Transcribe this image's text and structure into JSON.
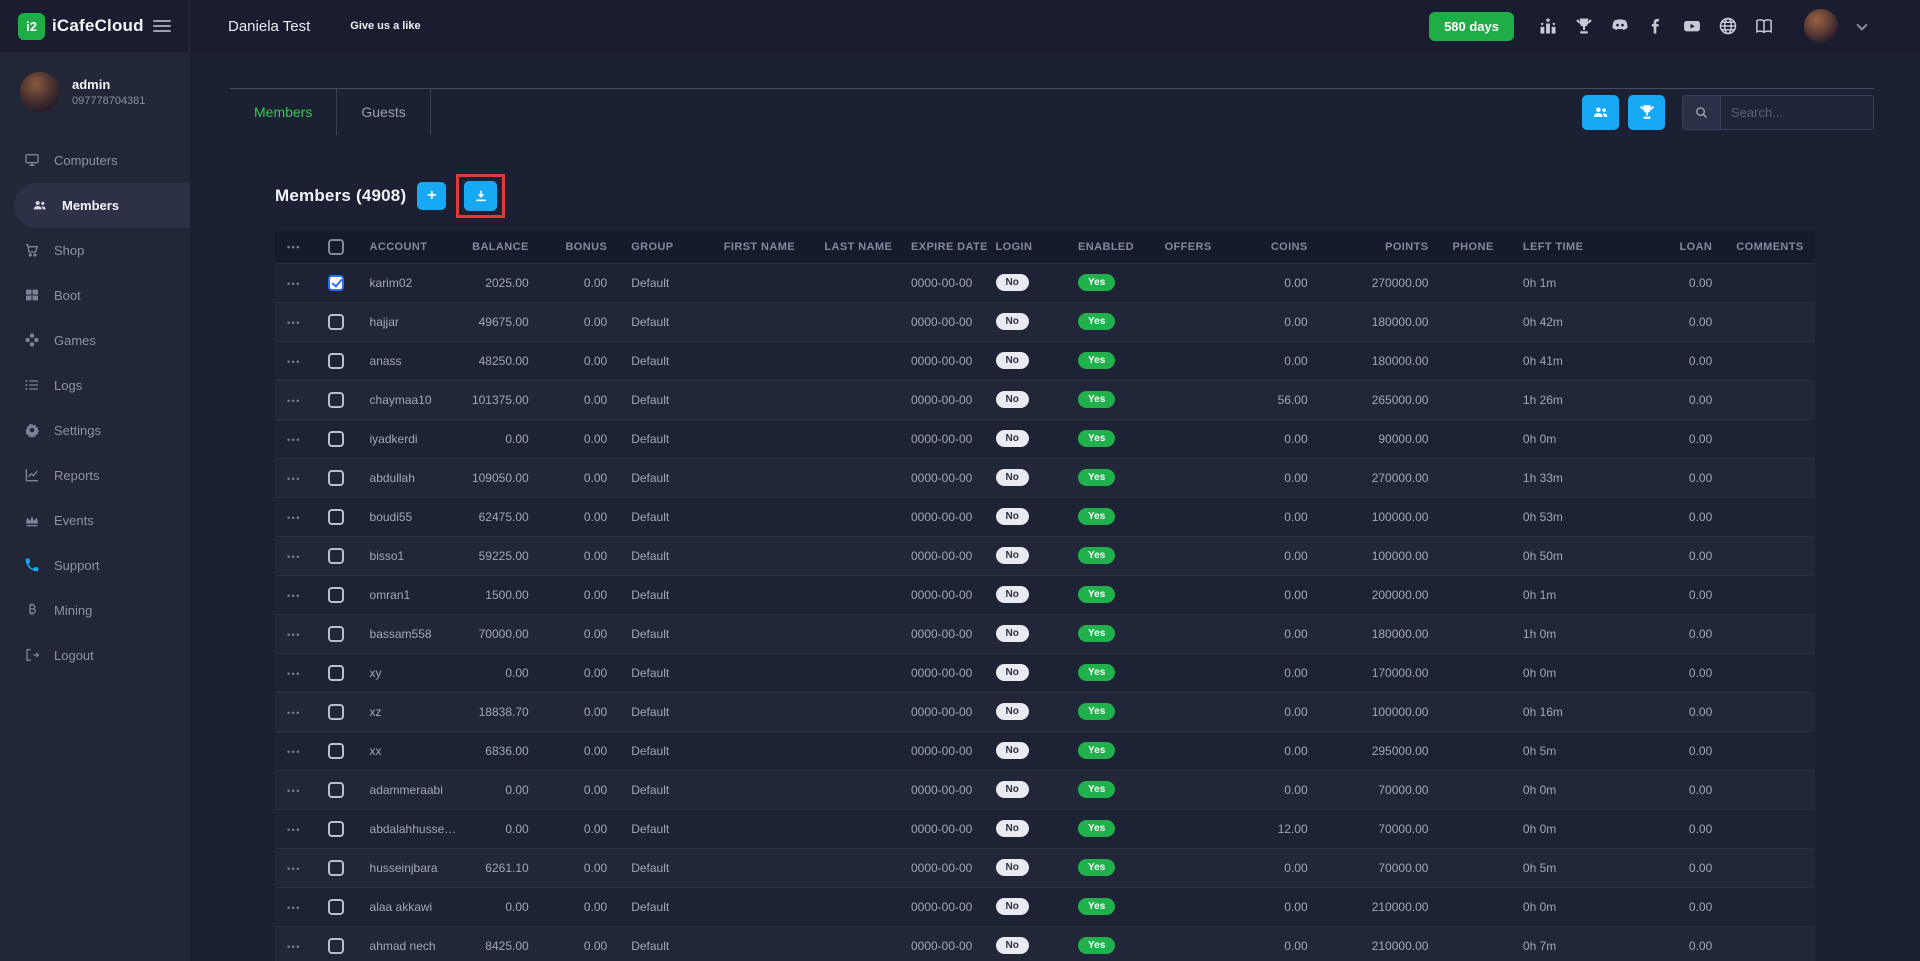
{
  "colors": {
    "topbar_bg": "#191d2f",
    "sidebar_bg": "#222737",
    "content_bg": "#1b2032",
    "header_bg": "#161b2b",
    "row_odd": "#1d2234",
    "row_even": "#212738",
    "accent_green": "#1fad47",
    "tab_green": "#35c94f",
    "accent_blue": "#18a9f5",
    "badge_green": "#21b14c",
    "highlight_red": "#e03a3a"
  },
  "topbar": {
    "brand": "iCafeCloud",
    "brand_glyph": "i2",
    "cafe_name": "Daniela Test",
    "like_label": "Give us a like",
    "days_button": "580 days",
    "social_icons": [
      "ranking-icon",
      "trophy-icon",
      "discord-icon",
      "facebook-icon",
      "youtube-icon",
      "globe-icon",
      "book-icon"
    ]
  },
  "sidebar": {
    "user": {
      "name": "admin",
      "phone": "097778704381"
    },
    "items": [
      {
        "label": "Computers",
        "icon": "monitor-icon",
        "active": false
      },
      {
        "label": "Members",
        "icon": "members-icon",
        "active": true
      },
      {
        "label": "Shop",
        "icon": "cart-icon",
        "active": false
      },
      {
        "label": "Boot",
        "icon": "windows-icon",
        "active": false
      },
      {
        "label": "Games",
        "icon": "games-icon",
        "active": false
      },
      {
        "label": "Logs",
        "icon": "logs-icon",
        "active": false
      },
      {
        "label": "Settings",
        "icon": "gear-icon",
        "active": false
      },
      {
        "label": "Reports",
        "icon": "chart-icon",
        "active": false
      },
      {
        "label": "Events",
        "icon": "crown-icon",
        "active": false
      },
      {
        "label": "Support",
        "icon": "phone-icon",
        "active": false,
        "accent": true
      },
      {
        "label": "Mining",
        "icon": "bitcoin-icon",
        "active": false
      },
      {
        "label": "Logout",
        "icon": "logout-icon",
        "active": false
      }
    ]
  },
  "tabs": [
    {
      "label": "Members",
      "active": true
    },
    {
      "label": "Guests",
      "active": false
    }
  ],
  "toolbar": {
    "search_placeholder": "Search...",
    "view_buttons": [
      {
        "name": "members-view-button",
        "icon": "group-icon"
      },
      {
        "name": "ranking-view-button",
        "icon": "trophy-icon"
      }
    ]
  },
  "content": {
    "title": "Members (4908)"
  },
  "table": {
    "columns": [
      {
        "key": "actions",
        "label": "•••",
        "type": "actions",
        "align": "left"
      },
      {
        "key": "select",
        "label": "",
        "type": "checkbox",
        "align": "center"
      },
      {
        "key": "account",
        "label": "ACCOUNT",
        "align": "left"
      },
      {
        "key": "balance",
        "label": "BALANCE",
        "align": "right"
      },
      {
        "key": "bonus",
        "label": "BONUS",
        "align": "right"
      },
      {
        "key": "group",
        "label": "GROUP",
        "align": "left"
      },
      {
        "key": "first_name",
        "label": "FIRST NAME",
        "align": "left"
      },
      {
        "key": "last_name",
        "label": "LAST NAME",
        "align": "left"
      },
      {
        "key": "expire_date",
        "label": "EXPIRE DATE",
        "align": "left"
      },
      {
        "key": "login",
        "label": "LOGIN",
        "type": "badge-light",
        "align": "left"
      },
      {
        "key": "enabled",
        "label": "ENABLED",
        "type": "badge-green",
        "align": "left"
      },
      {
        "key": "offers",
        "label": "OFFERS",
        "align": "left"
      },
      {
        "key": "coins",
        "label": "COINS",
        "align": "right"
      },
      {
        "key": "points",
        "label": "POINTS",
        "align": "right"
      },
      {
        "key": "phone",
        "label": "PHONE",
        "align": "left"
      },
      {
        "key": "left_time",
        "label": "LEFT TIME",
        "align": "left"
      },
      {
        "key": "loan",
        "label": "LOAN",
        "align": "right"
      },
      {
        "key": "comments",
        "label": "COMMENTS",
        "align": "left"
      }
    ],
    "rows": [
      {
        "selected": true,
        "account": "karim02",
        "balance": "2025.00",
        "bonus": "0.00",
        "group": "Default",
        "first_name": "",
        "last_name": "",
        "expire_date": "0000-00-00",
        "login": "No",
        "enabled": "Yes",
        "offers": "",
        "coins": "0.00",
        "points": "270000.00",
        "phone": "",
        "left_time": "0h 1m",
        "loan": "0.00",
        "comments": ""
      },
      {
        "selected": false,
        "account": "hajjar",
        "balance": "49675.00",
        "bonus": "0.00",
        "group": "Default",
        "first_name": "",
        "last_name": "",
        "expire_date": "0000-00-00",
        "login": "No",
        "enabled": "Yes",
        "offers": "",
        "coins": "0.00",
        "points": "180000.00",
        "phone": "",
        "left_time": "0h 42m",
        "loan": "0.00",
        "comments": ""
      },
      {
        "selected": false,
        "account": "anass",
        "balance": "48250.00",
        "bonus": "0.00",
        "group": "Default",
        "first_name": "",
        "last_name": "",
        "expire_date": "0000-00-00",
        "login": "No",
        "enabled": "Yes",
        "offers": "",
        "coins": "0.00",
        "points": "180000.00",
        "phone": "",
        "left_time": "0h 41m",
        "loan": "0.00",
        "comments": ""
      },
      {
        "selected": false,
        "account": "chaymaa10",
        "balance": "101375.00",
        "bonus": "0.00",
        "group": "Default",
        "first_name": "",
        "last_name": "",
        "expire_date": "0000-00-00",
        "login": "No",
        "enabled": "Yes",
        "offers": "",
        "coins": "56.00",
        "points": "265000.00",
        "phone": "",
        "left_time": "1h 26m",
        "loan": "0.00",
        "comments": ""
      },
      {
        "selected": false,
        "account": "iyadkerdi",
        "balance": "0.00",
        "bonus": "0.00",
        "group": "Default",
        "first_name": "",
        "last_name": "",
        "expire_date": "0000-00-00",
        "login": "No",
        "enabled": "Yes",
        "offers": "",
        "coins": "0.00",
        "points": "90000.00",
        "phone": "",
        "left_time": "0h 0m",
        "loan": "0.00",
        "comments": ""
      },
      {
        "selected": false,
        "account": "abdullah",
        "balance": "109050.00",
        "bonus": "0.00",
        "group": "Default",
        "first_name": "",
        "last_name": "",
        "expire_date": "0000-00-00",
        "login": "No",
        "enabled": "Yes",
        "offers": "",
        "coins": "0.00",
        "points": "270000.00",
        "phone": "",
        "left_time": "1h 33m",
        "loan": "0.00",
        "comments": ""
      },
      {
        "selected": false,
        "account": "boudi55",
        "balance": "62475.00",
        "bonus": "0.00",
        "group": "Default",
        "first_name": "",
        "last_name": "",
        "expire_date": "0000-00-00",
        "login": "No",
        "enabled": "Yes",
        "offers": "",
        "coins": "0.00",
        "points": "100000.00",
        "phone": "",
        "left_time": "0h 53m",
        "loan": "0.00",
        "comments": ""
      },
      {
        "selected": false,
        "account": "bisso1",
        "balance": "59225.00",
        "bonus": "0.00",
        "group": "Default",
        "first_name": "",
        "last_name": "",
        "expire_date": "0000-00-00",
        "login": "No",
        "enabled": "Yes",
        "offers": "",
        "coins": "0.00",
        "points": "100000.00",
        "phone": "",
        "left_time": "0h 50m",
        "loan": "0.00",
        "comments": ""
      },
      {
        "selected": false,
        "account": "omran1",
        "balance": "1500.00",
        "bonus": "0.00",
        "group": "Default",
        "first_name": "",
        "last_name": "",
        "expire_date": "0000-00-00",
        "login": "No",
        "enabled": "Yes",
        "offers": "",
        "coins": "0.00",
        "points": "200000.00",
        "phone": "",
        "left_time": "0h 1m",
        "loan": "0.00",
        "comments": ""
      },
      {
        "selected": false,
        "account": "bassam558",
        "balance": "70000.00",
        "bonus": "0.00",
        "group": "Default",
        "first_name": "",
        "last_name": "",
        "expire_date": "0000-00-00",
        "login": "No",
        "enabled": "Yes",
        "offers": "",
        "coins": "0.00",
        "points": "180000.00",
        "phone": "",
        "left_time": "1h 0m",
        "loan": "0.00",
        "comments": ""
      },
      {
        "selected": false,
        "account": "xy",
        "balance": "0.00",
        "bonus": "0.00",
        "group": "Default",
        "first_name": "",
        "last_name": "",
        "expire_date": "0000-00-00",
        "login": "No",
        "enabled": "Yes",
        "offers": "",
        "coins": "0.00",
        "points": "170000.00",
        "phone": "",
        "left_time": "0h 0m",
        "loan": "0.00",
        "comments": ""
      },
      {
        "selected": false,
        "account": "xz",
        "balance": "18838.70",
        "bonus": "0.00",
        "group": "Default",
        "first_name": "",
        "last_name": "",
        "expire_date": "0000-00-00",
        "login": "No",
        "enabled": "Yes",
        "offers": "",
        "coins": "0.00",
        "points": "100000.00",
        "phone": "",
        "left_time": "0h 16m",
        "loan": "0.00",
        "comments": ""
      },
      {
        "selected": false,
        "account": "xx",
        "balance": "6836.00",
        "bonus": "0.00",
        "group": "Default",
        "first_name": "",
        "last_name": "",
        "expire_date": "0000-00-00",
        "login": "No",
        "enabled": "Yes",
        "offers": "",
        "coins": "0.00",
        "points": "295000.00",
        "phone": "",
        "left_time": "0h 5m",
        "loan": "0.00",
        "comments": ""
      },
      {
        "selected": false,
        "account": "adammeraabi",
        "balance": "0.00",
        "bonus": "0.00",
        "group": "Default",
        "first_name": "",
        "last_name": "",
        "expire_date": "0000-00-00",
        "login": "No",
        "enabled": "Yes",
        "offers": "",
        "coins": "0.00",
        "points": "70000.00",
        "phone": "",
        "left_time": "0h 0m",
        "loan": "0.00",
        "comments": ""
      },
      {
        "selected": false,
        "account": "abdalahhusse…",
        "balance": "0.00",
        "bonus": "0.00",
        "group": "Default",
        "first_name": "",
        "last_name": "",
        "expire_date": "0000-00-00",
        "login": "No",
        "enabled": "Yes",
        "offers": "",
        "coins": "12.00",
        "points": "70000.00",
        "phone": "",
        "left_time": "0h 0m",
        "loan": "0.00",
        "comments": ""
      },
      {
        "selected": false,
        "account": "husseinjbara",
        "balance": "6261.10",
        "bonus": "0.00",
        "group": "Default",
        "first_name": "",
        "last_name": "",
        "expire_date": "0000-00-00",
        "login": "No",
        "enabled": "Yes",
        "offers": "",
        "coins": "0.00",
        "points": "70000.00",
        "phone": "",
        "left_time": "0h 5m",
        "loan": "0.00",
        "comments": ""
      },
      {
        "selected": false,
        "account": "alaa akkawi",
        "balance": "0.00",
        "bonus": "0.00",
        "group": "Default",
        "first_name": "",
        "last_name": "",
        "expire_date": "0000-00-00",
        "login": "No",
        "enabled": "Yes",
        "offers": "",
        "coins": "0.00",
        "points": "210000.00",
        "phone": "",
        "left_time": "0h 0m",
        "loan": "0.00",
        "comments": ""
      },
      {
        "selected": false,
        "account": "ahmad nech",
        "balance": "8425.00",
        "bonus": "0.00",
        "group": "Default",
        "first_name": "",
        "last_name": "",
        "expire_date": "0000-00-00",
        "login": "No",
        "enabled": "Yes",
        "offers": "",
        "coins": "0.00",
        "points": "210000.00",
        "phone": "",
        "left_time": "0h 7m",
        "loan": "0.00",
        "comments": ""
      }
    ]
  }
}
